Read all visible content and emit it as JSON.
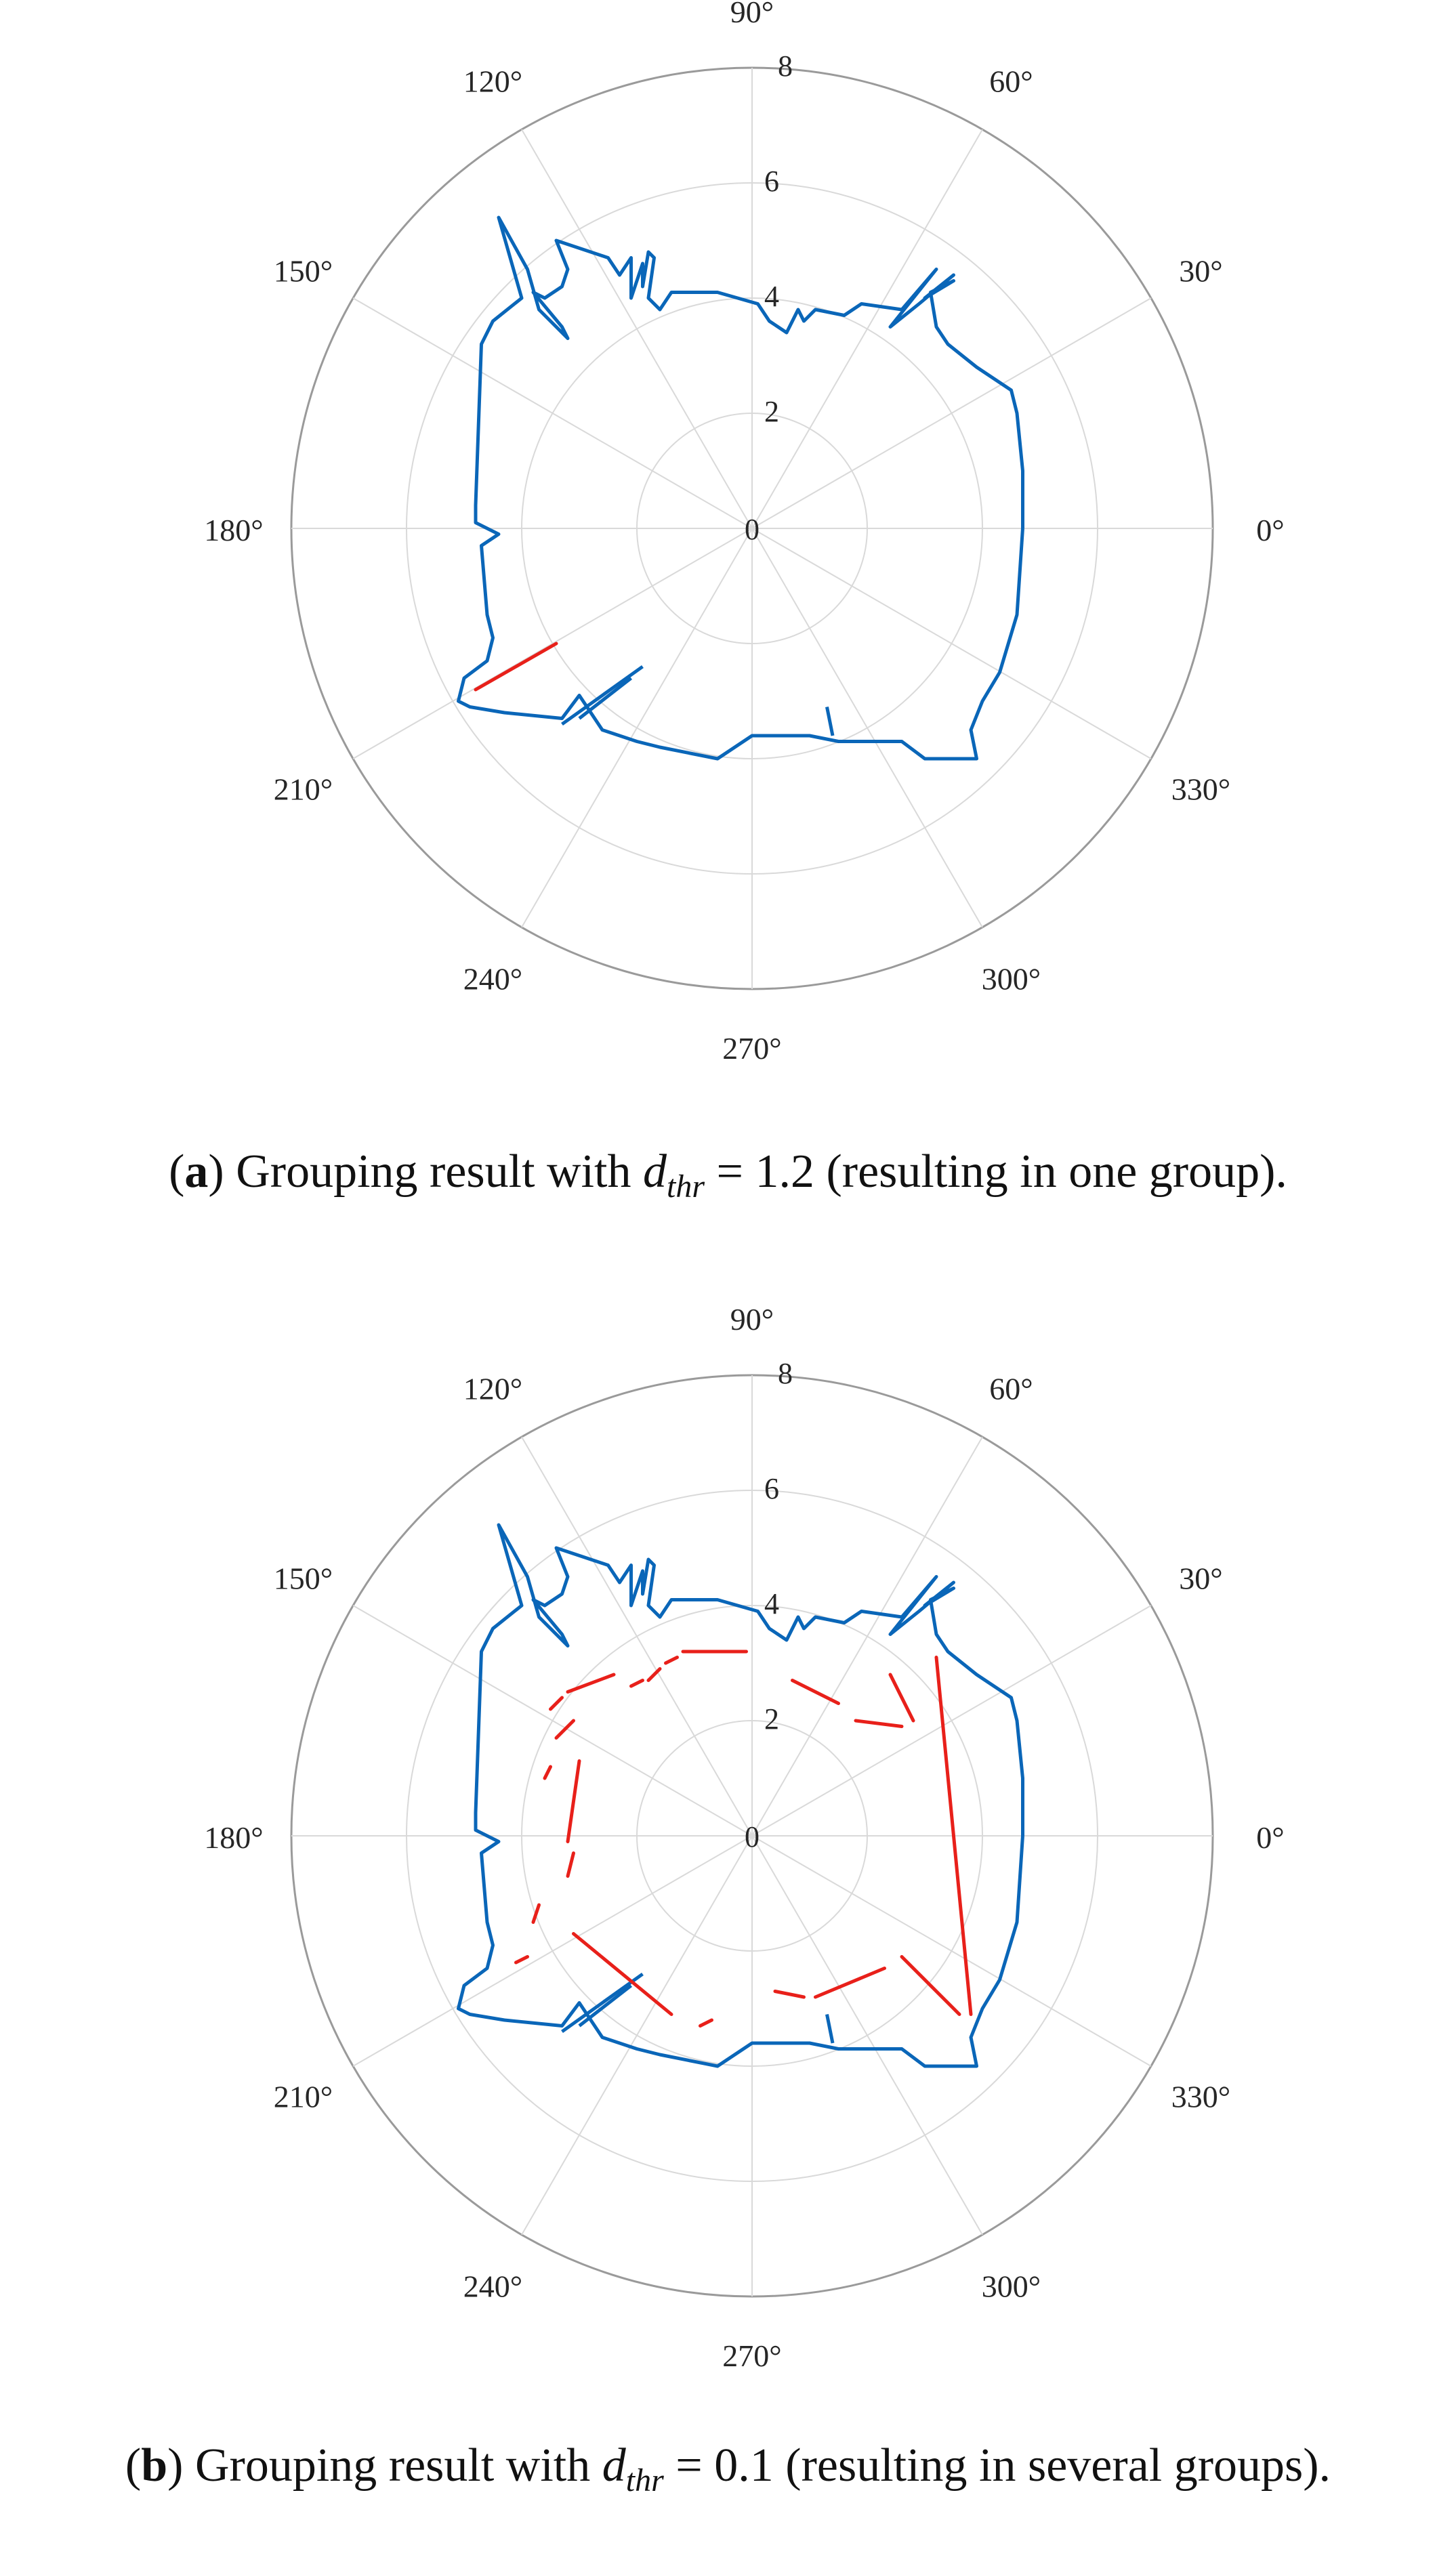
{
  "charts": [
    {
      "id": "a",
      "caption": {
        "prefix": "(",
        "letter": "a",
        "text1": ") Grouping result with ",
        "var_main": "d",
        "var_sub": "thr",
        "text2": " = 1.2 (resulting in one group)."
      }
    },
    {
      "id": "b",
      "caption": {
        "prefix": "(",
        "letter": "b",
        "text1": ") Grouping result with ",
        "var_main": "d",
        "var_sub": "thr",
        "text2": " = 0.1 (resulting in several groups)."
      }
    }
  ],
  "colors": {
    "boundary": "#0a66b8",
    "groups": "#e8201a",
    "grid": "#d9d9d9",
    "outer": "#9a9a9a"
  },
  "chart_data": [
    {
      "type": "polar-line",
      "rlim": [
        0,
        8
      ],
      "rticks": [
        "0",
        "2",
        "4",
        "6",
        "8"
      ],
      "rtick_values": [
        0,
        2,
        4,
        6,
        8
      ],
      "thetaticks": [
        "0°",
        "30°",
        "60°",
        "90°",
        "120°",
        "150°",
        "180°",
        "210°",
        "240°",
        "270°",
        "300°",
        "330°"
      ],
      "thetatick_values": [
        0,
        30,
        60,
        90,
        120,
        150,
        180,
        210,
        240,
        270,
        300,
        330
      ],
      "grid": true,
      "boundary_xy": [
        [
          4.7,
          0
        ],
        [
          4.7,
          1.0
        ],
        [
          4.6,
          2.0
        ],
        [
          4.5,
          2.4
        ],
        [
          3.9,
          2.8
        ],
        [
          3.4,
          3.2
        ],
        [
          3.2,
          3.5
        ],
        [
          3.1,
          4.1
        ],
        [
          3.5,
          4.3
        ],
        [
          3.0,
          4.0
        ],
        [
          3.5,
          4.4
        ],
        [
          2.9,
          3.9
        ],
        [
          2.4,
          3.5
        ],
        [
          3.2,
          4.5
        ],
        [
          2.6,
          3.8
        ],
        [
          1.9,
          3.9
        ],
        [
          1.6,
          3.7
        ],
        [
          1.1,
          3.8
        ],
        [
          0.9,
          3.6
        ],
        [
          0.8,
          3.8
        ],
        [
          0.6,
          3.4
        ],
        [
          0.3,
          3.6
        ],
        [
          0.1,
          3.9
        ],
        [
          -0.6,
          4.1
        ],
        [
          -1.4,
          4.1
        ],
        [
          -1.6,
          3.8
        ],
        [
          -1.8,
          4.0
        ],
        [
          -1.7,
          4.7
        ],
        [
          -1.8,
          4.8
        ],
        [
          -1.9,
          4.2
        ],
        [
          -1.9,
          4.6
        ],
        [
          -2.1,
          4.0
        ],
        [
          -2.1,
          4.7
        ],
        [
          -2.3,
          4.4
        ],
        [
          -2.5,
          4.7
        ],
        [
          -3.4,
          5.0
        ],
        [
          -3.2,
          4.5
        ],
        [
          -3.3,
          4.2
        ],
        [
          -3.6,
          4.0
        ],
        [
          -3.8,
          4.1
        ],
        [
          -3.3,
          3.5
        ],
        [
          -3.2,
          3.3
        ],
        [
          -3.7,
          3.8
        ],
        [
          -3.9,
          4.5
        ],
        [
          -4.4,
          5.4
        ],
        [
          -4.0,
          4.0
        ],
        [
          -4.5,
          3.6
        ],
        [
          -4.7,
          3.2
        ],
        [
          -4.8,
          0.4
        ],
        [
          -4.8,
          0.1
        ],
        [
          -4.4,
          -0.1
        ],
        [
          -4.7,
          -0.3
        ],
        [
          -4.6,
          -1.5
        ],
        [
          -4.5,
          -1.9
        ],
        [
          -4.6,
          -2.3
        ],
        [
          -5.0,
          -2.6
        ],
        [
          -5.1,
          -3.0
        ],
        [
          -4.9,
          -3.1
        ],
        [
          -4.3,
          -3.2
        ],
        [
          -3.3,
          -3.3
        ],
        [
          -3.0,
          -2.9
        ],
        [
          -2.6,
          -3.5
        ],
        [
          -2.0,
          -3.7
        ],
        [
          -1.6,
          -3.8
        ],
        [
          -0.6,
          -4.0
        ],
        [
          0.0,
          -3.6
        ],
        [
          0.1,
          -3.6
        ],
        [
          1.0,
          -3.6
        ],
        [
          1.5,
          -3.7
        ],
        [
          2.6,
          -3.7
        ],
        [
          3.0,
          -4.0
        ],
        [
          3.2,
          -4.0
        ],
        [
          3.6,
          -4.0
        ],
        [
          3.9,
          -4.0
        ],
        [
          3.8,
          -3.5
        ],
        [
          4.0,
          -3.0
        ],
        [
          4.3,
          -2.5
        ],
        [
          4.6,
          -1.5
        ],
        [
          4.7,
          0
        ]
      ],
      "boundary_spikes": [
        {
          "from": [
            -3.3,
            -3.4
          ],
          "to": [
            -1.9,
            -2.4
          ]
        },
        {
          "from": [
            -3.0,
            -3.3
          ],
          "to": [
            -2.1,
            -2.6
          ]
        },
        {
          "from": [
            1.4,
            -3.6
          ],
          "to": [
            1.3,
            -3.1
          ]
        }
      ],
      "groups_a": [
        {
          "x": [
            -4.8,
            -3.4
          ],
          "y": [
            -2.8,
            -2.0
          ]
        }
      ],
      "groups_b": [
        {
          "x": [
            -1.2,
            -0.1
          ],
          "y": [
            3.2,
            3.2
          ]
        },
        {
          "x": [
            -1.5,
            -1.3
          ],
          "y": [
            3.0,
            3.1
          ]
        },
        {
          "x": [
            -1.8,
            -1.6
          ],
          "y": [
            2.7,
            2.9
          ]
        },
        {
          "x": [
            -2.1,
            -1.9
          ],
          "y": [
            2.6,
            2.7
          ]
        },
        {
          "x": [
            -3.2,
            -2.4
          ],
          "y": [
            2.5,
            2.8
          ]
        },
        {
          "x": [
            -3.5,
            -3.3
          ],
          "y": [
            2.2,
            2.4
          ]
        },
        {
          "x": [
            -3.4,
            -3.1
          ],
          "y": [
            1.7,
            2.0
          ]
        },
        {
          "x": [
            -3.6,
            -3.5
          ],
          "y": [
            1.0,
            1.2
          ]
        },
        {
          "x": [
            -3.2,
            -3.0
          ],
          "y": [
            -0.1,
            1.3
          ]
        },
        {
          "x": [
            -3.2,
            -3.1
          ],
          "y": [
            -0.7,
            -0.3
          ]
        },
        {
          "x": [
            -3.7,
            -3.8
          ],
          "y": [
            -1.2,
            -1.5
          ]
        },
        {
          "x": [
            -4.1,
            -3.9
          ],
          "y": [
            -2.2,
            -2.1
          ]
        },
        {
          "x": [
            -3.1,
            -1.4
          ],
          "y": [
            -1.7,
            -3.1
          ]
        },
        {
          "x": [
            -0.9,
            -0.7
          ],
          "y": [
            -3.3,
            -3.2
          ]
        },
        {
          "x": [
            0.4,
            0.9
          ],
          "y": [
            -2.7,
            -2.8
          ]
        },
        {
          "x": [
            1.1,
            2.3
          ],
          "y": [
            -2.8,
            -2.3
          ]
        },
        {
          "x": [
            2.6,
            3.6
          ],
          "y": [
            -2.1,
            -3.1
          ]
        },
        {
          "x": [
            3.2,
            3.8
          ],
          "y": [
            3.1,
            -3.1
          ]
        },
        {
          "x": [
            0.7,
            1.5
          ],
          "y": [
            2.7,
            2.3
          ]
        },
        {
          "x": [
            1.8,
            2.6
          ],
          "y": [
            2.0,
            1.9
          ]
        },
        {
          "x": [
            2.4,
            2.8
          ],
          "y": [
            2.8,
            2.0
          ]
        }
      ]
    }
  ]
}
